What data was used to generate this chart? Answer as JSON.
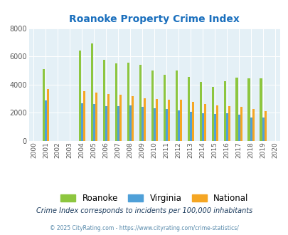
{
  "title": "Roanoke Property Crime Index",
  "title_color": "#1a6fbd",
  "years": [
    2000,
    2001,
    2002,
    2003,
    2004,
    2005,
    2006,
    2007,
    2008,
    2009,
    2010,
    2011,
    2012,
    2013,
    2014,
    2015,
    2016,
    2017,
    2018,
    2019,
    2020
  ],
  "roanoke": [
    0,
    5100,
    0,
    0,
    6400,
    6900,
    5750,
    5500,
    5550,
    5400,
    5000,
    4700,
    5000,
    4550,
    4200,
    3850,
    4250,
    4500,
    4450,
    4450,
    0
  ],
  "virginia": [
    0,
    2900,
    0,
    0,
    2700,
    2650,
    2500,
    2500,
    2550,
    2400,
    2330,
    2280,
    2170,
    2080,
    1950,
    1900,
    1950,
    1850,
    1680,
    1670,
    0
  ],
  "national": [
    0,
    3700,
    0,
    0,
    3550,
    3450,
    3350,
    3300,
    3200,
    3050,
    2980,
    2950,
    2950,
    2780,
    2620,
    2530,
    2490,
    2400,
    2280,
    2130,
    0
  ],
  "roanoke_color": "#8dc63f",
  "virginia_color": "#4fa0d8",
  "national_color": "#f5a623",
  "bg_color": "#e4f0f6",
  "ylim": [
    0,
    8000
  ],
  "yticks": [
    0,
    2000,
    4000,
    6000,
    8000
  ],
  "subtitle": "Crime Index corresponds to incidents per 100,000 inhabitants",
  "footer": "© 2025 CityRating.com - https://www.cityrating.com/crime-statistics/",
  "legend_labels": [
    "Roanoke",
    "Virginia",
    "National"
  ]
}
